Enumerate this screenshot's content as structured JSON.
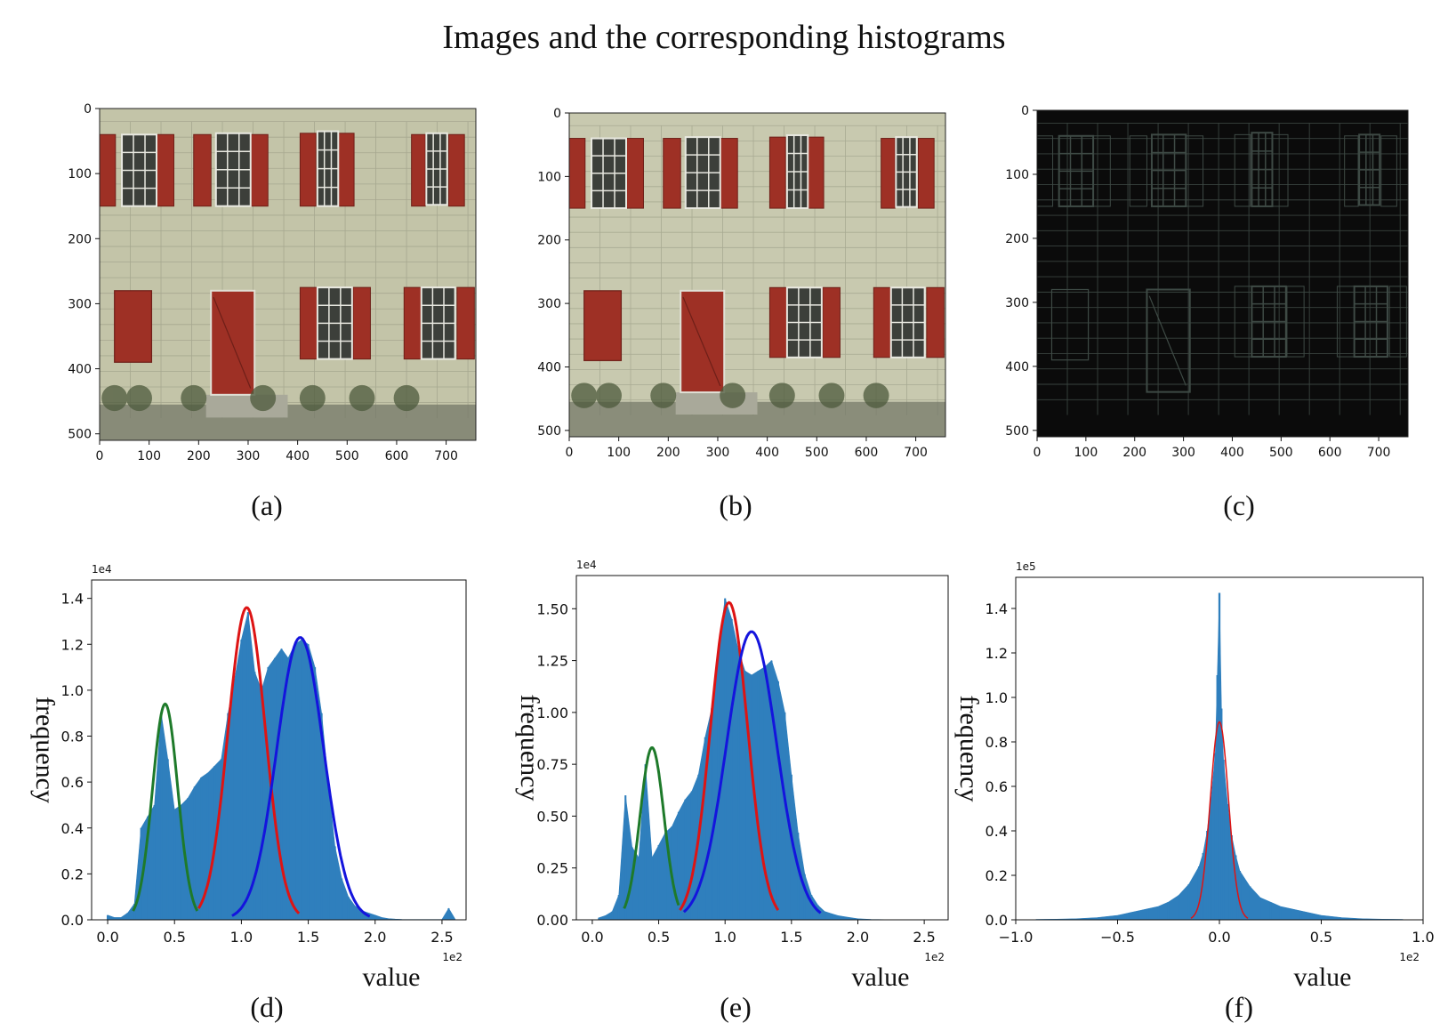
{
  "figure_title": "Images and the corresponding histograms",
  "colors": {
    "hist": "#2f7fbd",
    "green": "#1e7a2a",
    "red": "#dd1414",
    "blue": "#1414dd",
    "facade": "#c3c4a8",
    "shutter": "#9e3025",
    "edge_bg": "#0b0b0b",
    "edge_line": "#3e4a45"
  },
  "images": [
    {
      "caption": "(a)",
      "variant": "original",
      "x_ticks": [
        "0",
        "100",
        "200",
        "300",
        "400",
        "500",
        "600",
        "700"
      ],
      "y_ticks": [
        "0",
        "100",
        "200",
        "300",
        "400",
        "500"
      ]
    },
    {
      "caption": "(b)",
      "variant": "smoothed",
      "x_ticks": [
        "0",
        "100",
        "200",
        "300",
        "400",
        "500",
        "600",
        "700"
      ],
      "y_ticks": [
        "0",
        "100",
        "200",
        "300",
        "400",
        "500"
      ]
    },
    {
      "caption": "(c)",
      "variant": "edges",
      "x_ticks": [
        "0",
        "100",
        "200",
        "300",
        "400",
        "500",
        "600",
        "700"
      ],
      "y_ticks": [
        "0",
        "100",
        "200",
        "300",
        "400",
        "500"
      ]
    }
  ],
  "chart_data": [
    {
      "type": "bar",
      "caption": "(d)",
      "xlabel": "value",
      "ylabel": "frequency",
      "x_exponent": "1e2",
      "y_exponent": "1e4",
      "xlim": [
        -0.12,
        2.68
      ],
      "ylim": [
        0,
        1.48
      ],
      "x_ticks": [
        {
          "v": 0,
          "label": "0.0"
        },
        {
          "v": 0.5,
          "label": "0.5"
        },
        {
          "v": 1.0,
          "label": "1.0"
        },
        {
          "v": 1.5,
          "label": "1.5"
        },
        {
          "v": 2.0,
          "label": "2.0"
        },
        {
          "v": 2.5,
          "label": "2.5"
        }
      ],
      "y_ticks": [
        {
          "v": 0,
          "label": "0.0"
        },
        {
          "v": 0.2,
          "label": "0.2"
        },
        {
          "v": 0.4,
          "label": "0.4"
        },
        {
          "v": 0.6,
          "label": "0.6"
        },
        {
          "v": 0.8,
          "label": "0.8"
        },
        {
          "v": 1.0,
          "label": "1.0"
        },
        {
          "v": 1.2,
          "label": "1.2"
        },
        {
          "v": 1.4,
          "label": "1.4"
        }
      ],
      "histogram": {
        "x": [
          0.0,
          0.05,
          0.1,
          0.15,
          0.2,
          0.25,
          0.3,
          0.35,
          0.4,
          0.45,
          0.5,
          0.55,
          0.6,
          0.65,
          0.7,
          0.75,
          0.8,
          0.85,
          0.9,
          0.95,
          1.0,
          1.05,
          1.1,
          1.15,
          1.2,
          1.25,
          1.3,
          1.35,
          1.4,
          1.45,
          1.5,
          1.55,
          1.6,
          1.65,
          1.7,
          1.75,
          1.8,
          1.85,
          1.9,
          1.95,
          2.0,
          2.05,
          2.1,
          2.15,
          2.2,
          2.3,
          2.4,
          2.5,
          2.55,
          2.6
        ],
        "y": [
          0.02,
          0.01,
          0.01,
          0.03,
          0.07,
          0.4,
          0.45,
          0.5,
          0.9,
          0.7,
          0.48,
          0.5,
          0.53,
          0.58,
          0.62,
          0.64,
          0.67,
          0.7,
          0.9,
          1.05,
          1.22,
          1.34,
          1.08,
          1.0,
          1.1,
          1.14,
          1.18,
          1.14,
          1.2,
          1.22,
          1.2,
          1.1,
          0.9,
          0.6,
          0.32,
          0.18,
          0.1,
          0.06,
          0.04,
          0.03,
          0.02,
          0.01,
          0.005,
          0.003,
          0.002,
          0.001,
          0.001,
          0.002,
          0.05,
          0.001
        ]
      },
      "fits": [
        {
          "color": "green",
          "mu": 0.43,
          "sigma": 0.095,
          "peak": 0.94,
          "range": [
            0.19,
            0.67
          ]
        },
        {
          "color": "red",
          "mu": 1.04,
          "sigma": 0.14,
          "peak": 1.36,
          "range": [
            0.68,
            1.43
          ]
        },
        {
          "color": "blue",
          "mu": 1.44,
          "sigma": 0.175,
          "peak": 1.23,
          "range": [
            0.93,
            1.96
          ]
        }
      ]
    },
    {
      "type": "bar",
      "caption": "(e)",
      "xlabel": "value",
      "ylabel": "frequency",
      "x_exponent": "1e2",
      "y_exponent": "1e4",
      "xlim": [
        -0.12,
        2.68
      ],
      "ylim": [
        0,
        1.66
      ],
      "x_ticks": [
        {
          "v": 0,
          "label": "0.0"
        },
        {
          "v": 0.5,
          "label": "0.5"
        },
        {
          "v": 1.0,
          "label": "1.0"
        },
        {
          "v": 1.5,
          "label": "1.5"
        },
        {
          "v": 2.0,
          "label": "2.0"
        },
        {
          "v": 2.5,
          "label": "2.5"
        }
      ],
      "y_ticks": [
        {
          "v": 0,
          "label": "0.00"
        },
        {
          "v": 0.25,
          "label": "0.25"
        },
        {
          "v": 0.5,
          "label": "0.50"
        },
        {
          "v": 0.75,
          "label": "0.75"
        },
        {
          "v": 1.0,
          "label": "1.00"
        },
        {
          "v": 1.25,
          "label": "1.25"
        },
        {
          "v": 1.5,
          "label": "1.50"
        }
      ],
      "histogram": {
        "x": [
          0.05,
          0.1,
          0.15,
          0.2,
          0.25,
          0.3,
          0.35,
          0.4,
          0.45,
          0.5,
          0.55,
          0.6,
          0.65,
          0.7,
          0.75,
          0.8,
          0.85,
          0.9,
          0.95,
          1.0,
          1.05,
          1.1,
          1.15,
          1.2,
          1.25,
          1.3,
          1.35,
          1.4,
          1.45,
          1.5,
          1.55,
          1.6,
          1.65,
          1.7,
          1.75,
          1.8,
          1.85,
          1.9,
          1.95,
          2.0,
          2.1,
          2.2
        ],
        "y": [
          0.01,
          0.02,
          0.04,
          0.12,
          0.6,
          0.35,
          0.3,
          0.75,
          0.3,
          0.36,
          0.42,
          0.45,
          0.52,
          0.58,
          0.62,
          0.7,
          0.88,
          1.02,
          1.3,
          1.55,
          1.45,
          1.3,
          1.2,
          1.18,
          1.2,
          1.22,
          1.25,
          1.15,
          1.0,
          0.7,
          0.42,
          0.22,
          0.12,
          0.07,
          0.04,
          0.03,
          0.02,
          0.015,
          0.01,
          0.005,
          0.002,
          0.001
        ]
      },
      "fits": [
        {
          "color": "green",
          "mu": 0.45,
          "sigma": 0.09,
          "peak": 0.83,
          "range": [
            0.24,
            0.65
          ]
        },
        {
          "color": "red",
          "mu": 1.03,
          "sigma": 0.14,
          "peak": 1.53,
          "range": [
            0.66,
            1.4
          ]
        },
        {
          "color": "blue",
          "mu": 1.2,
          "sigma": 0.19,
          "peak": 1.39,
          "range": [
            0.69,
            1.72
          ]
        }
      ]
    },
    {
      "type": "bar",
      "caption": "(f)",
      "xlabel": "value",
      "ylabel": "frequency",
      "x_exponent": "1e2",
      "y_exponent": "1e5",
      "xlim": [
        -1.0,
        1.0
      ],
      "ylim": [
        0,
        1.54
      ],
      "x_ticks": [
        {
          "v": -1.0,
          "label": "−1.0"
        },
        {
          "v": -0.5,
          "label": "−0.5"
        },
        {
          "v": 0,
          "label": "0.0"
        },
        {
          "v": 0.5,
          "label": "0.5"
        },
        {
          "v": 1.0,
          "label": "1.0"
        }
      ],
      "y_ticks": [
        {
          "v": 0,
          "label": "0.0"
        },
        {
          "v": 0.2,
          "label": "0.2"
        },
        {
          "v": 0.4,
          "label": "0.4"
        },
        {
          "v": 0.6,
          "label": "0.6"
        },
        {
          "v": 0.8,
          "label": "0.8"
        },
        {
          "v": 1.0,
          "label": "1.0"
        },
        {
          "v": 1.2,
          "label": "1.2"
        },
        {
          "v": 1.4,
          "label": "1.4"
        }
      ],
      "histogram": {
        "x": [
          -0.9,
          -0.8,
          -0.7,
          -0.6,
          -0.5,
          -0.45,
          -0.4,
          -0.35,
          -0.3,
          -0.25,
          -0.2,
          -0.15,
          -0.1,
          -0.08,
          -0.06,
          -0.04,
          -0.02,
          -0.01,
          0.0,
          0.01,
          0.02,
          0.04,
          0.06,
          0.08,
          0.1,
          0.15,
          0.2,
          0.25,
          0.3,
          0.35,
          0.4,
          0.45,
          0.5,
          0.6,
          0.7,
          0.8,
          0.9
        ],
        "y": [
          0.002,
          0.003,
          0.005,
          0.01,
          0.02,
          0.03,
          0.04,
          0.05,
          0.06,
          0.08,
          0.11,
          0.16,
          0.24,
          0.3,
          0.4,
          0.55,
          0.75,
          1.1,
          1.47,
          0.95,
          0.72,
          0.52,
          0.38,
          0.29,
          0.22,
          0.15,
          0.1,
          0.08,
          0.06,
          0.05,
          0.04,
          0.03,
          0.02,
          0.01,
          0.005,
          0.003,
          0.002
        ]
      },
      "fits": [
        {
          "color": "red",
          "mu": 0.0,
          "sigma": 0.045,
          "peak": 0.89,
          "range": [
            -0.14,
            0.14
          ]
        }
      ]
    }
  ]
}
